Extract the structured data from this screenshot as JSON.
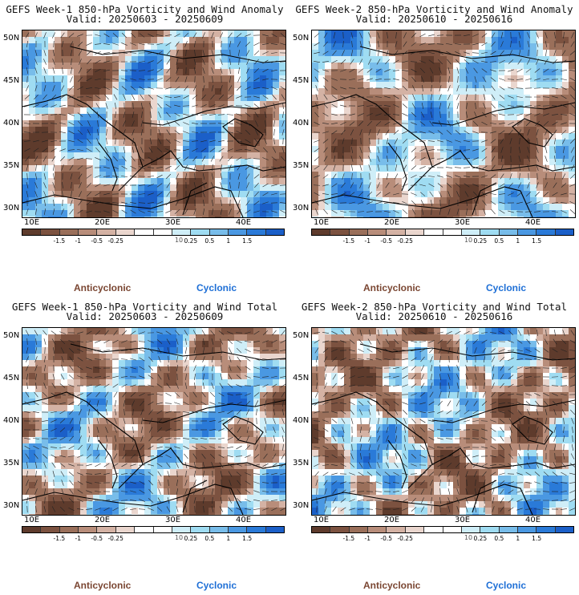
{
  "panels": [
    {
      "title": "GEFS Week-1 850-hPa Vorticity and Wind Anomaly",
      "valid": "Valid: 20250603 - 20250609",
      "seed": 3
    },
    {
      "title": "GEFS Week-2 850-hPa Vorticity and Wind Anomaly",
      "valid": "Valid: 20250610 - 20250616",
      "seed": 7
    },
    {
      "title": "GEFS Week-1 850-hPa Vorticity and Wind Total",
      "valid": "Valid: 20250603 - 20250609",
      "seed": 11
    },
    {
      "title": "GEFS Week-2 850-hPa Vorticity and Wind Total",
      "valid": "Valid: 20250610 - 20250616",
      "seed": 17
    }
  ],
  "lat_labels": [
    "50N",
    "45N",
    "40N",
    "35N",
    "30N"
  ],
  "lon_labels": [
    "10E",
    "20E",
    "30E",
    "40E"
  ],
  "colorbar": {
    "labels": [
      "-1.5",
      "-1",
      "-0.5",
      "-0.25",
      "0.25",
      "0.5",
      "1",
      "1.5"
    ],
    "units": "10",
    "colors": [
      "#5e3b2c",
      "#7c5240",
      "#9a6f5a",
      "#b88d7a",
      "#d4b2a4",
      "#ead6ce",
      "#ffffff",
      "#ffffff",
      "#cfeef8",
      "#9fdcf2",
      "#78bdea",
      "#4a98e2",
      "#2a7ad8",
      "#1b5fc8"
    ]
  },
  "legend": {
    "anticyclonic": "Anticyclonic",
    "cyclonic": "Cyclonic"
  }
}
